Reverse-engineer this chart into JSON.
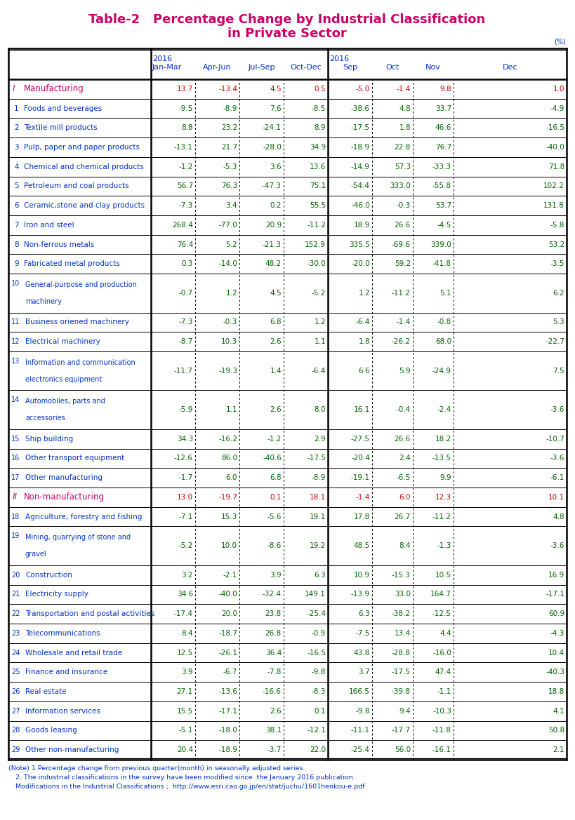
{
  "title_line1": "Table-2   Percentage Change by Industrial Classification",
  "title_line2": "in Private Sector",
  "title_color": "#cc0066",
  "header_color": "#0033cc",
  "data_color_green": "#006600",
  "data_color_red": "#cc0000",
  "section_label_color": "#cc0066",
  "row_label_color": "#0033cc",
  "note_color": "#0033cc",
  "rows": [
    {
      "num": "I",
      "label": "Manufacturing",
      "is_section": true,
      "values": [
        "13.7",
        "-13.4",
        "4.5",
        "0.5",
        "-5.0",
        "-1.4",
        "9.8",
        "1.0"
      ]
    },
    {
      "num": "1",
      "label": "Foods and beverages",
      "is_section": false,
      "values": [
        "-9.5",
        "-8.9",
        "7.6",
        "-8.5",
        "-38.6",
        "4.8",
        "33.7",
        "-4.9"
      ]
    },
    {
      "num": "2",
      "label": "Textile mill products",
      "is_section": false,
      "values": [
        "8.8",
        "23.2",
        "-24.1",
        "8.9",
        "-17.5",
        "1.8",
        "46.6",
        "-16.5"
      ]
    },
    {
      "num": "3",
      "label": "Pulp, paper and paper products",
      "is_section": false,
      "values": [
        "-13.1",
        "21.7",
        "-28.0",
        "34.9",
        "-18.9",
        "22.8",
        "76.7",
        "-40.0"
      ]
    },
    {
      "num": "4",
      "label": "Chemical and chemical products",
      "is_section": false,
      "values": [
        "-1.2",
        "-5.3",
        "3.6",
        "13.6",
        "-14.9",
        "57.3",
        "-33.3",
        "71.8"
      ]
    },
    {
      "num": "5",
      "label": "Petroleum and coal products",
      "is_section": false,
      "values": [
        "56.7",
        "76.3",
        "-47.3",
        "75.1",
        "-54.4",
        "333.0",
        "-55.8",
        "102.2"
      ]
    },
    {
      "num": "6",
      "label": "Ceramic,stone and clay products",
      "is_section": false,
      "values": [
        "-7.3",
        "3.4",
        "0.2",
        "55.5",
        "-46.0",
        "-0.3",
        "53.7",
        "131.8"
      ]
    },
    {
      "num": "7",
      "label": "Iron and steel",
      "is_section": false,
      "values": [
        "268.4",
        "-77.0",
        "20.9",
        "-11.2",
        "18.9",
        "26.6",
        "-4.5",
        "-5.8"
      ]
    },
    {
      "num": "8",
      "label": "Non-ferrous metals",
      "is_section": false,
      "values": [
        "76.4",
        "5.2",
        "-21.3",
        "152.9",
        "335.5",
        "-69.6",
        "339.0",
        "53.2"
      ]
    },
    {
      "num": "9",
      "label": "Fabricated metal products",
      "is_section": false,
      "values": [
        "0.3",
        "-14.0",
        "48.2",
        "-30.0",
        "-20.0",
        "59.2",
        "-41.8",
        "-3.5"
      ]
    },
    {
      "num": "10",
      "label": "General-purpose and production\nmachinery",
      "is_section": false,
      "values": [
        "-0.7",
        "1.2",
        "4.5",
        "-5.2",
        "1.2",
        "-11.2",
        "5.1",
        "6.2"
      ]
    },
    {
      "num": "11",
      "label": "Business oriened machinery",
      "is_section": false,
      "values": [
        "-7.3",
        "-0.3",
        "6.8",
        "1.2",
        "-6.4",
        "-1.4",
        "-0.8",
        "5.3"
      ]
    },
    {
      "num": "12",
      "label": "Electrical machinery",
      "is_section": false,
      "values": [
        "-8.7",
        "10.3",
        "2.6",
        "1.1",
        "1.8",
        "-26.2",
        "68.0",
        "-22.7"
      ]
    },
    {
      "num": "13",
      "label": "Information and communication\nelectronics equipment",
      "is_section": false,
      "values": [
        "-11.7",
        "-19.3",
        "1.4",
        "-6.4",
        "6.6",
        "5.9",
        "-24.9",
        "7.5"
      ]
    },
    {
      "num": "14",
      "label": "Automobiles, parts and\naccessories",
      "is_section": false,
      "values": [
        "-5.9",
        "1.1",
        "2.6",
        "8.0",
        "16.1",
        "-0.4",
        "-2.4",
        "-3.6"
      ]
    },
    {
      "num": "15",
      "label": "Ship building",
      "is_section": false,
      "values": [
        "34.3",
        "-16.2",
        "-1.2",
        "2.9",
        "-27.5",
        "26.6",
        "18.2",
        "-10.7"
      ]
    },
    {
      "num": "16",
      "label": "Other transport equipment",
      "is_section": false,
      "values": [
        "-12.6",
        "86.0",
        "-40.6",
        "-17.5",
        "-20.4",
        "2.4",
        "-13.5",
        "-3.6"
      ]
    },
    {
      "num": "17",
      "label": "Other manufacturing",
      "is_section": false,
      "values": [
        "-1.7",
        "6.0",
        "6.8",
        "-8.9",
        "-19.1",
        "-6.5",
        "9.9",
        "-6.1"
      ]
    },
    {
      "num": "II",
      "label": "Non-manufacturing",
      "is_section": true,
      "values": [
        "13.0",
        "-19.7",
        "0.1",
        "18.1",
        "-1.4",
        "6.0",
        "12.3",
        "10.1"
      ]
    },
    {
      "num": "18",
      "label": "Agriculture, forestry and fishing",
      "is_section": false,
      "values": [
        "-7.1",
        "15.3",
        "-5.6",
        "19.1",
        "17.8",
        "26.7",
        "-11.2",
        "4.8"
      ]
    },
    {
      "num": "19",
      "label": "Mining, quarrying of stone and\ngravel",
      "is_section": false,
      "values": [
        "-5.2",
        "10.0",
        "-8.6",
        "19.2",
        "48.5",
        "8.4",
        "-1.3",
        "-3.6"
      ]
    },
    {
      "num": "20",
      "label": "Construction",
      "is_section": false,
      "values": [
        "3.2",
        "-2.1",
        "3.9",
        "6.3",
        "10.9",
        "-15.3",
        "10.5",
        "16.9"
      ]
    },
    {
      "num": "21",
      "label": "Electricity supply",
      "is_section": false,
      "values": [
        "34.6",
        "-40.0",
        "-32.4",
        "149.1",
        "-13.9",
        "33.0",
        "164.7",
        "-17.1"
      ]
    },
    {
      "num": "22",
      "label": "Transportation and postal activities",
      "is_section": false,
      "values": [
        "-17.4",
        "20.0",
        "23.8",
        "-25.4",
        "6.3",
        "-38.2",
        "-12.5",
        "60.9"
      ]
    },
    {
      "num": "23",
      "label": "Telecommunications",
      "is_section": false,
      "values": [
        "8.4",
        "-18.7",
        "26.8",
        "-0.9",
        "-7.5",
        "13.4",
        "4.4",
        "-4.3"
      ]
    },
    {
      "num": "24",
      "label": "Wholesale and retail trade",
      "is_section": false,
      "values": [
        "12.5",
        "-26.1",
        "36.4",
        "-16.5",
        "43.8",
        "-28.8",
        "-16.0",
        "10.4"
      ]
    },
    {
      "num": "25",
      "label": "Finance and insurance",
      "is_section": false,
      "values": [
        "3.9",
        "-6.7",
        "-7.8",
        "-9.8",
        "3.7",
        "-17.5",
        "47.4",
        "-40.3"
      ]
    },
    {
      "num": "26",
      "label": "Real estate",
      "is_section": false,
      "values": [
        "27.1",
        "-13.6",
        "-16.6",
        "-8.3",
        "166.5",
        "-39.8",
        "-1.1",
        "18.8"
      ]
    },
    {
      "num": "27",
      "label": "Information services",
      "is_section": false,
      "values": [
        "15.5",
        "-17.1",
        "2.6",
        "0.1",
        "-9.8",
        "9.4",
        "-10.3",
        "4.1"
      ]
    },
    {
      "num": "28",
      "label": "Goods leasing",
      "is_section": false,
      "values": [
        "-5.1",
        "-18.0",
        "38.1",
        "-12.1",
        "-11.1",
        "-17.7",
        "-11.8",
        "50.8"
      ]
    },
    {
      "num": "29",
      "label": "Other non-manufacturing",
      "is_section": false,
      "values": [
        "20.4",
        "-18.9",
        "-3.7",
        "22.0",
        "-25.4",
        "56.0",
        "-16.1",
        "2.1"
      ]
    }
  ],
  "notes": [
    "(Note) 1.Percentage change from previous quarter(month) in seasonally adjusted series.",
    "2. The industrial classifications in the survey have been modified since  the January 2016 publication.",
    "Modifications in the Industrial Classifications ;  http://www.esri.cao.go.jp/en/stat/juchu/1601henkou-e.pdf"
  ]
}
